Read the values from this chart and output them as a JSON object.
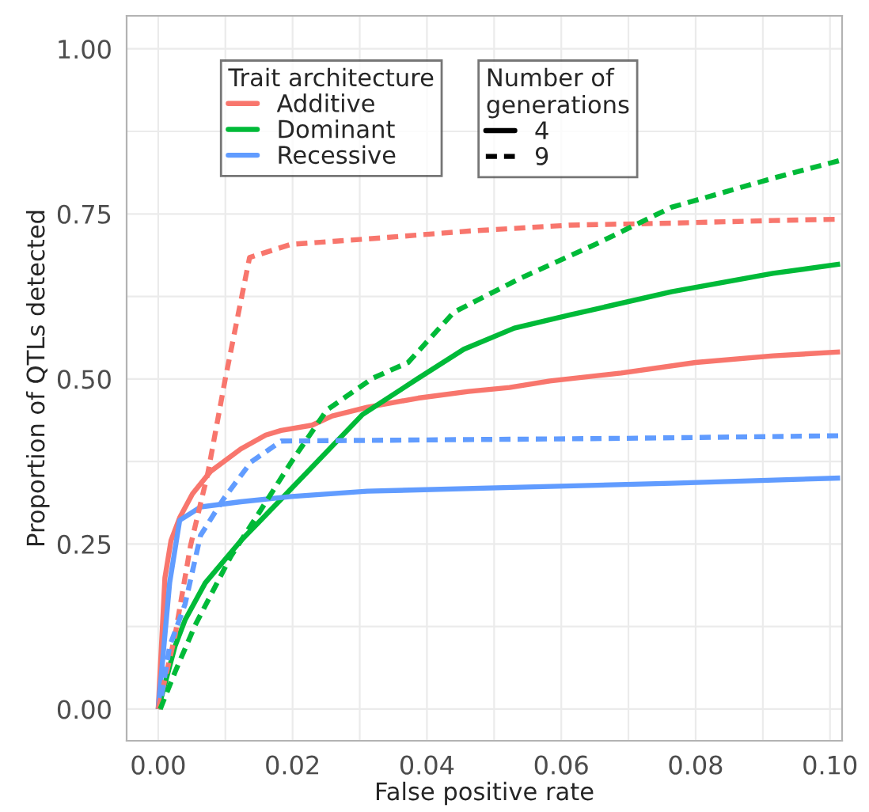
{
  "chart_data": {
    "type": "line",
    "xlabel": "False positive rate",
    "ylabel": "Proportion of QTLs detected",
    "xlim": [
      -0.0047,
      0.1018
    ],
    "xticks": [
      {
        "value": 0,
        "label": "0.00"
      },
      {
        "value": 0.02,
        "label": "0.02"
      },
      {
        "value": 0.04,
        "label": "0.04"
      },
      {
        "value": 0.06,
        "label": "0.06"
      },
      {
        "value": 0.08,
        "label": "0.08"
      },
      {
        "value": 0.1,
        "label": "0.10"
      }
    ],
    "ylim": [
      -0.048,
      1.05
    ],
    "yticks": [
      {
        "value": 0,
        "label": "0.00"
      },
      {
        "value": 0.25,
        "label": "0.25"
      },
      {
        "value": 0.5,
        "label": "0.50"
      },
      {
        "value": 0.75,
        "label": "0.75"
      },
      {
        "value": 1,
        "label": "1.00"
      }
    ],
    "grid": true,
    "legend": "top left",
    "legend_title": [
      "Trait architecture",
      "Number of generations"
    ],
    "series": [
      {
        "name": "Additive",
        "color": "#f8766d",
        "line_style": "solid",
        "x": [
          0,
          0.001,
          0.0019,
          0.0032,
          0.0051,
          0.0078,
          0.0123,
          0.016,
          0.0183,
          0.0229,
          0.0259,
          0.0311,
          0.0387,
          0.0462,
          0.0523,
          0.0583,
          0.0689,
          0.08,
          0.0915,
          0.1015
        ],
        "values": [
          0,
          0.199,
          0.255,
          0.29,
          0.326,
          0.36,
          0.394,
          0.415,
          0.422,
          0.43,
          0.444,
          0.457,
          0.471,
          0.481,
          0.487,
          0.497,
          0.509,
          0.525,
          0.535,
          0.541
        ]
      },
      {
        "name": "Dominant",
        "color": "#00ba38",
        "line_style": "solid",
        "x": [
          0,
          0.0025,
          0.004,
          0.007,
          0.0123,
          0.0183,
          0.0221,
          0.0304,
          0.0387,
          0.0455,
          0.053,
          0.0613,
          0.0764,
          0.0915,
          0.1015
        ],
        "values": [
          0,
          0.095,
          0.135,
          0.191,
          0.255,
          0.318,
          0.358,
          0.446,
          0.501,
          0.545,
          0.577,
          0.597,
          0.632,
          0.66,
          0.674
        ]
      },
      {
        "name": "Recessive",
        "color": "#619cff",
        "line_style": "solid",
        "x": [
          0,
          0.0017,
          0.0032,
          0.0063,
          0.0123,
          0.0198,
          0.0311,
          0.0538,
          0.0764,
          0.1015
        ],
        "values": [
          0,
          0.191,
          0.286,
          0.306,
          0.314,
          0.322,
          0.33,
          0.336,
          0.342,
          0.35
        ]
      },
      {
        "color": "#f8766d",
        "line_style": "dashed",
        "x": [
          0,
          0.0025,
          0.0048,
          0.0074,
          0.01,
          0.0136,
          0.0198,
          0.0311,
          0.0462,
          0.0613,
          0.0764,
          0.0915,
          0.1015
        ],
        "values": [
          0,
          0.111,
          0.247,
          0.358,
          0.501,
          0.684,
          0.704,
          0.712,
          0.724,
          0.733,
          0.736,
          0.74,
          0.742
        ]
      },
      {
        "color": "#00ba38",
        "line_style": "dashed",
        "x": [
          0.0003,
          0.0025,
          0.0055,
          0.0108,
          0.0153,
          0.0198,
          0.0251,
          0.0319,
          0.0372,
          0.044,
          0.0538,
          0.0651,
          0.0764,
          0.0915,
          0.1015
        ],
        "values": [
          0,
          0.056,
          0.127,
          0.231,
          0.302,
          0.374,
          0.453,
          0.501,
          0.525,
          0.601,
          0.652,
          0.704,
          0.76,
          0.804,
          0.831
        ]
      },
      {
        "color": "#619cff",
        "line_style": "dashed",
        "x": [
          0.0005,
          0.0017,
          0.004,
          0.0063,
          0.0097,
          0.0138,
          0.0183,
          0.0311,
          0.0689,
          0.1015
        ],
        "values": [
          0.02,
          0.095,
          0.159,
          0.263,
          0.318,
          0.374,
          0.406,
          0.407,
          0.41,
          0.414
        ]
      }
    ],
    "annotations": [
      "4",
      "9"
    ]
  }
}
